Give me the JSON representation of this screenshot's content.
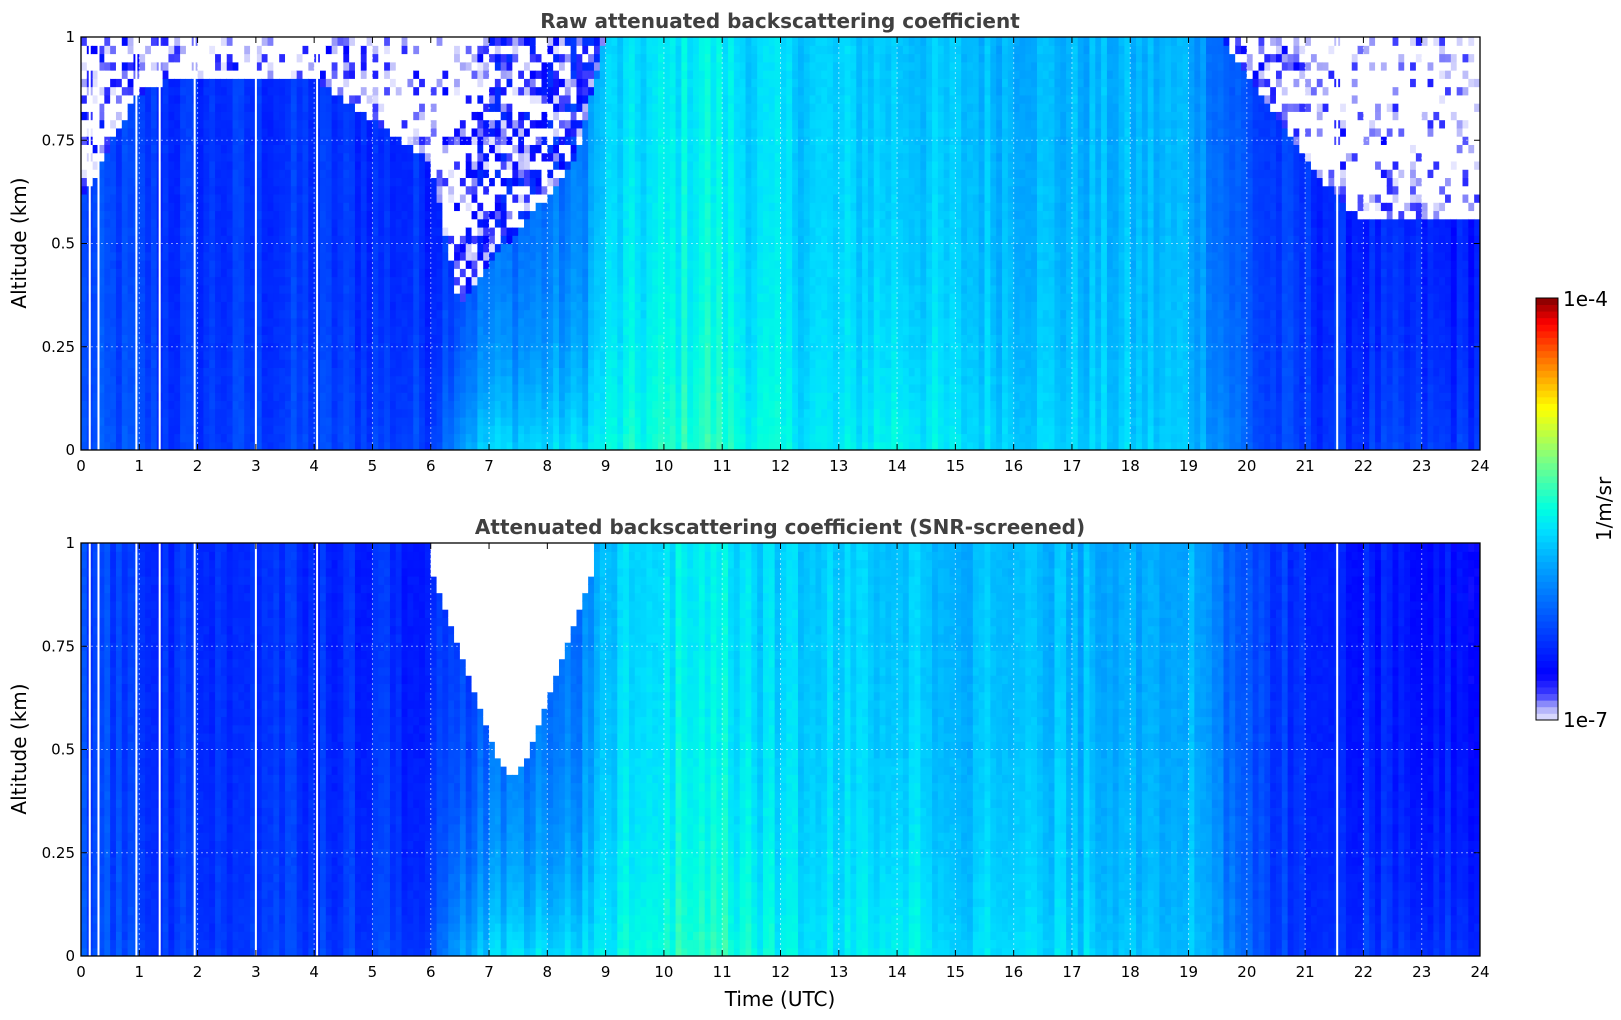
{
  "figure": {
    "colorbar": {
      "max_label": "1e-4",
      "min_label": "1e-7",
      "unit_label": "1/m/sr",
      "scale": "log",
      "range": [
        1e-07,
        0.0001
      ],
      "colormap": "jet"
    }
  },
  "chart_data": [
    {
      "type": "heatmap",
      "title": "Raw attenuated backscattering coefficient",
      "xlabel": "",
      "ylabel": "Altitude (km)",
      "xlim": [
        0,
        24
      ],
      "ylim": [
        0,
        1
      ],
      "grid": true,
      "x_ticks": [
        "0",
        "1",
        "2",
        "3",
        "4",
        "5",
        "6",
        "7",
        "8",
        "9",
        "10",
        "11",
        "12",
        "13",
        "14",
        "15",
        "16",
        "17",
        "18",
        "19",
        "20",
        "21",
        "22",
        "23",
        "24"
      ],
      "y_ticks": [
        "0",
        "0.25",
        "0.5",
        "0.75",
        "1"
      ],
      "time_breakpoints_utc": [
        0,
        0.9,
        1.5,
        4,
        6,
        6.5,
        7,
        8.5,
        9,
        10,
        10.7,
        11.5,
        13,
        14,
        15,
        17,
        19,
        19.6,
        20.3,
        21,
        22,
        24
      ],
      "near_surface_log10": [
        -6.3,
        -6.3,
        -6.4,
        -6.35,
        -6.35,
        -5.9,
        -5.7,
        -5.65,
        -5.55,
        -5.45,
        -5.35,
        -5.5,
        -5.65,
        -5.5,
        -5.65,
        -5.7,
        -5.75,
        -6.0,
        -6.35,
        -6.4,
        -6.4,
        -6.4
      ],
      "upper_log10": [
        -6.35,
        -6.4,
        -6.45,
        -6.45,
        -6.5,
        -6.45,
        -6.3,
        -6.2,
        -5.75,
        -5.65,
        -5.55,
        -5.7,
        -5.75,
        -5.75,
        -5.8,
        -5.85,
        -5.85,
        -6.2,
        -6.4,
        -6.45,
        -6.55,
        -6.6
      ],
      "noise_top_km": [
        0.6,
        0.85,
        0.9,
        0.9,
        0.7,
        0.35,
        0.45,
        0.7,
        1.0,
        1.0,
        1.0,
        1.0,
        1.0,
        1.0,
        1.0,
        1.0,
        1.0,
        1.0,
        0.85,
        0.7,
        0.55,
        0.55
      ],
      "gaps_utc": [
        0.15,
        0.3,
        0.95,
        1.35,
        1.95,
        3.0,
        4.05,
        21.55
      ]
    },
    {
      "type": "heatmap",
      "title": "Attenuated backscattering coefficient (SNR-screened)",
      "xlabel": "Time (UTC)",
      "ylabel": "Altitude (km)",
      "xlim": [
        0,
        24
      ],
      "ylim": [
        0,
        1
      ],
      "grid": true,
      "x_ticks": [
        "0",
        "1",
        "2",
        "3",
        "4",
        "5",
        "6",
        "7",
        "8",
        "9",
        "10",
        "11",
        "12",
        "13",
        "14",
        "15",
        "16",
        "17",
        "18",
        "19",
        "20",
        "21",
        "22",
        "23",
        "24"
      ],
      "y_ticks": [
        "0",
        "0.25",
        "0.5",
        "0.75",
        "1"
      ],
      "time_breakpoints_utc": [
        0,
        0.9,
        1.5,
        4,
        6,
        6.5,
        7,
        8.5,
        9,
        10,
        10.7,
        11.5,
        13,
        14,
        15,
        17,
        19,
        19.6,
        20.3,
        21,
        22,
        24
      ],
      "near_surface_log10": [
        -6.3,
        -6.3,
        -6.4,
        -6.35,
        -6.35,
        -5.9,
        -5.7,
        -5.65,
        -5.55,
        -5.45,
        -5.35,
        -5.5,
        -5.65,
        -5.5,
        -5.65,
        -5.7,
        -5.75,
        -6.0,
        -6.35,
        -6.4,
        -6.4,
        -6.4
      ],
      "upper_log10": [
        -6.35,
        -6.4,
        -6.45,
        -6.45,
        -6.5,
        -6.45,
        -6.3,
        -6.2,
        -5.75,
        -5.65,
        -5.55,
        -5.7,
        -5.75,
        -5.75,
        -5.8,
        -5.85,
        -5.85,
        -6.2,
        -6.4,
        -6.45,
        -6.55,
        -6.6
      ],
      "screened_region": {
        "time_utc": [
          6.0,
          8.8
        ],
        "altitude_km": [
          0.45,
          1.0
        ]
      },
      "gaps_utc": [
        0.15,
        0.3,
        0.95,
        1.35,
        1.95,
        3.0,
        4.05,
        21.55
      ]
    }
  ]
}
